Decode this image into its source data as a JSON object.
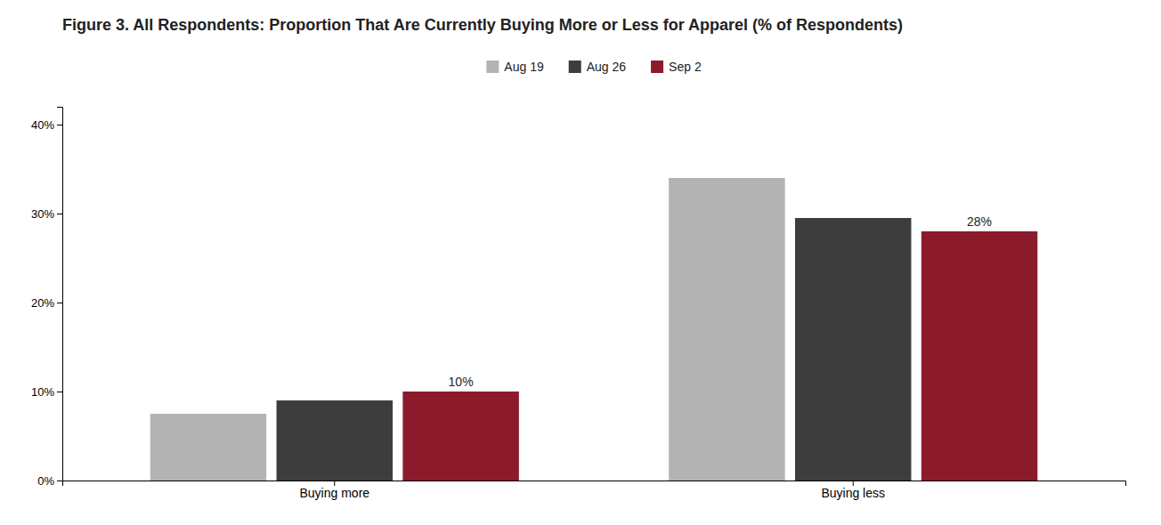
{
  "chart_data": {
    "type": "bar",
    "title": "Figure 3. All Respondents: Proportion That Are Currently Buying More or Less for Apparel (% of Respondents)",
    "categories": [
      "Buying more",
      "Buying less"
    ],
    "series": [
      {
        "name": "Aug 19",
        "color": "#b3b3b3",
        "values": [
          7.5,
          34.0
        ]
      },
      {
        "name": "Aug 26",
        "color": "#3d3d3d",
        "values": [
          9.0,
          29.5
        ]
      },
      {
        "name": "Sep 2",
        "color": "#8b1a2a",
        "values": [
          10.0,
          28.0
        ],
        "data_labels": true,
        "value_labels": [
          "10%",
          "28%"
        ]
      }
    ],
    "ylim": [
      0,
      42
    ],
    "yticks": [
      {
        "value": 0,
        "label": "0%"
      },
      {
        "value": 10,
        "label": "10%"
      },
      {
        "value": 20,
        "label": "20%"
      },
      {
        "value": 30,
        "label": "30%"
      },
      {
        "value": 40,
        "label": "40%"
      }
    ],
    "grid": false,
    "legend": "top"
  }
}
